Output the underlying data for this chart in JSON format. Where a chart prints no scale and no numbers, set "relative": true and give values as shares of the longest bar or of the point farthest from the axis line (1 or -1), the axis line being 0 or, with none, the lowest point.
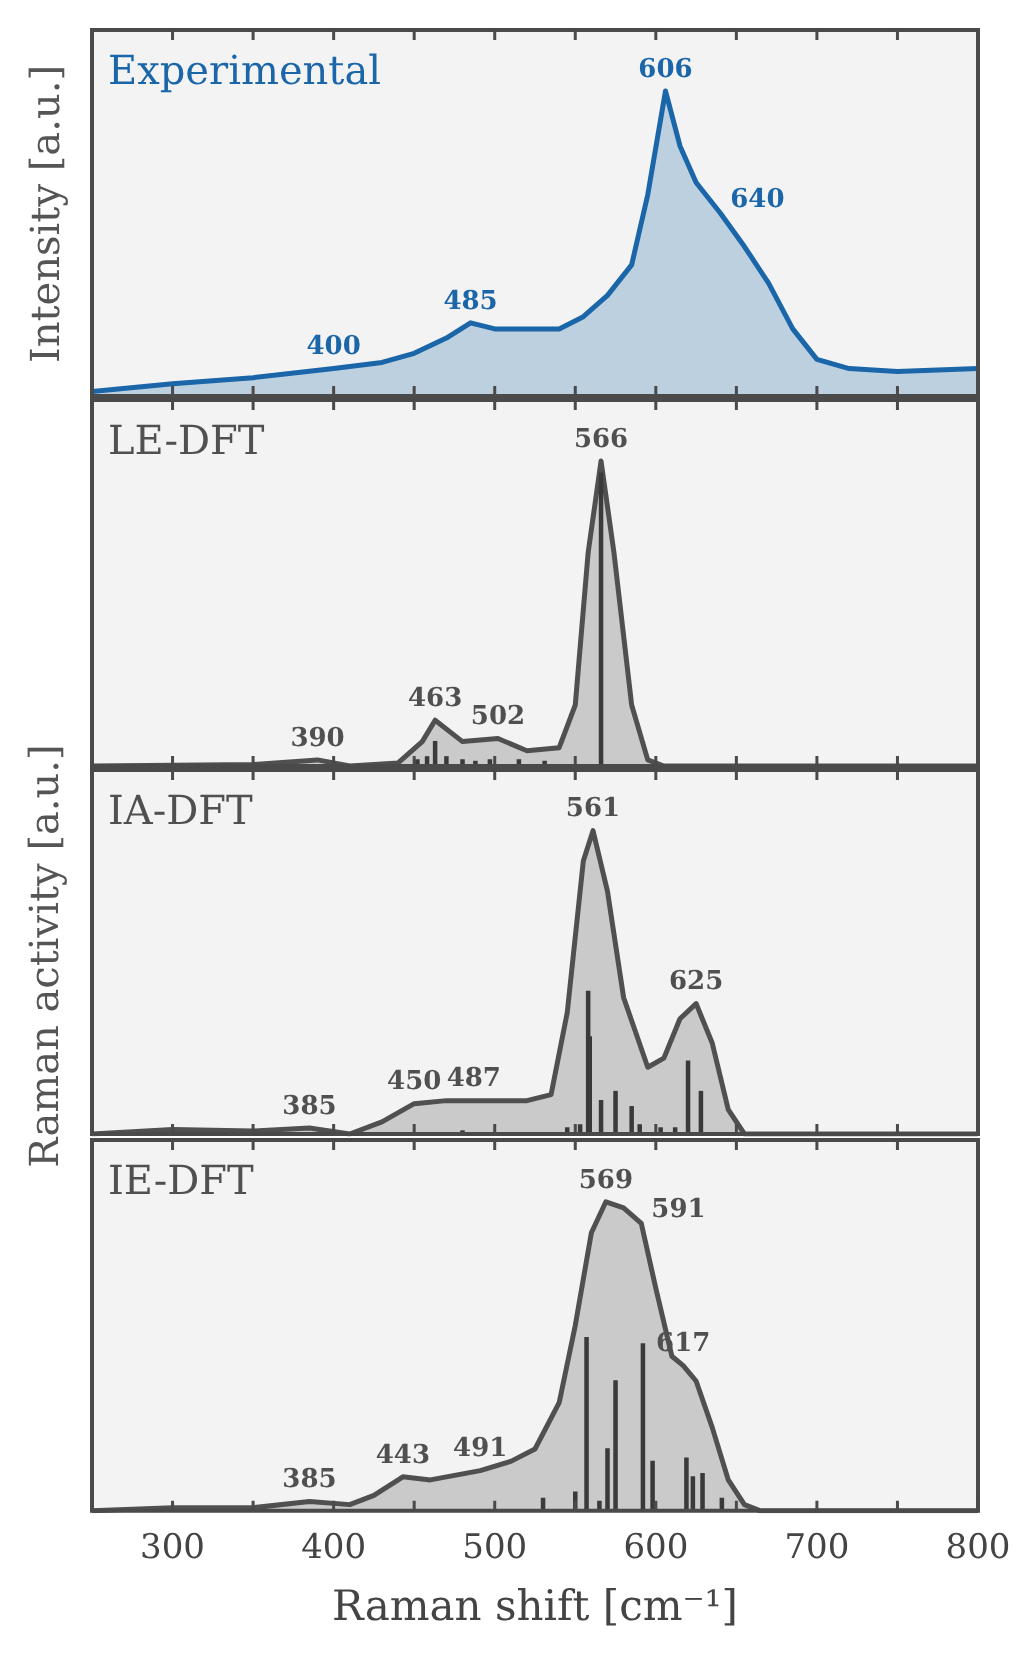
{
  "chart_data": [
    {
      "type": "area",
      "title": "Experimental",
      "ylabel": "Intensity [a.u.]",
      "relative": true,
      "xlim": [
        250,
        800
      ],
      "xticks": [
        300,
        {
          "value": 350,
          "label": null
        },
        400,
        {
          "value": 450,
          "label": null
        },
        500,
        {
          "value": 550,
          "label": null
        },
        600,
        {
          "value": 650,
          "label": null
        },
        700,
        {
          "value": 750,
          "label": null
        },
        800
      ],
      "tick_labels": false,
      "grid": false,
      "legend": false,
      "x": [
        250,
        300,
        350,
        400,
        430,
        450,
        470,
        485,
        500,
        520,
        540,
        555,
        570,
        585,
        595,
        606,
        615,
        625,
        640,
        655,
        670,
        685,
        700,
        720,
        750,
        800
      ],
      "series": [
        {
          "color": "#1a66a8",
          "values": [
            0.015,
            0.04,
            0.06,
            0.09,
            0.11,
            0.14,
            0.19,
            0.24,
            0.22,
            0.22,
            0.22,
            0.26,
            0.33,
            0.43,
            0.66,
            1,
            0.82,
            0.7,
            0.6,
            0.49,
            0.37,
            0.22,
            0.12,
            0.09,
            0.08,
            0.09
          ]
        }
      ],
      "annotations": [
        {
          "text": "400",
          "x": 400,
          "y": 0.09
        },
        {
          "text": "485",
          "x": 485,
          "y": 0.24
        },
        {
          "text": "606",
          "x": 606,
          "y": 1
        },
        {
          "text": "640",
          "x": 640,
          "y": 0.6
        }
      ]
    },
    {
      "type": "area",
      "title": "LE-DFT",
      "relative": true,
      "xlim": [
        250,
        800
      ],
      "xticks": [
        300,
        {
          "value": 350,
          "label": null
        },
        400,
        {
          "value": 450,
          "label": null
        },
        500,
        {
          "value": 550,
          "label": null
        },
        600,
        {
          "value": 650,
          "label": null
        },
        700,
        {
          "value": 750,
          "label": null
        },
        800
      ],
      "tick_labels": false,
      "grid": false,
      "legend": false,
      "x": [
        250,
        350,
        390,
        410,
        440,
        455,
        463,
        480,
        502,
        520,
        540,
        550,
        558,
        566,
        574,
        585,
        595,
        605,
        800
      ],
      "series": [
        {
          "color": "#505050",
          "values": [
            0,
            0.005,
            0.02,
            0,
            0.01,
            0.08,
            0.15,
            0.08,
            0.09,
            0.05,
            0.06,
            0.2,
            0.7,
            1,
            0.7,
            0.2,
            0.02,
            0,
            0
          ]
        },
        {
          "type": "bar",
          "color": "#3a3a3a",
          "x": [
            452,
            458,
            463,
            470,
            480,
            488,
            497,
            515,
            531,
            566
          ],
          "values": [
            0.02,
            0.03,
            0.08,
            0.03,
            0.02,
            0.015,
            0.02,
            0.02,
            0.015,
            0.96
          ]
        }
      ],
      "annotations": [
        {
          "text": "390",
          "x": 390,
          "y": 0.02
        },
        {
          "text": "463",
          "x": 463,
          "y": 0.15
        },
        {
          "text": "502",
          "x": 502,
          "y": 0.09
        },
        {
          "text": "566",
          "x": 566,
          "y": 1
        }
      ]
    },
    {
      "type": "area",
      "title": "IA-DFT",
      "ylabel": "Raman activity [a.u.]",
      "relative": true,
      "xlim": [
        250,
        800
      ],
      "xticks": [
        300,
        {
          "value": 350,
          "label": null
        },
        400,
        {
          "value": 450,
          "label": null
        },
        500,
        {
          "value": 550,
          "label": null
        },
        600,
        {
          "value": 650,
          "label": null
        },
        700,
        {
          "value": 750,
          "label": null
        },
        800
      ],
      "tick_labels": false,
      "grid": false,
      "legend": false,
      "x": [
        250,
        300,
        350,
        385,
        410,
        430,
        450,
        470,
        487,
        520,
        535,
        545,
        555,
        561,
        570,
        580,
        595,
        605,
        615,
        625,
        635,
        645,
        655,
        800
      ],
      "series": [
        {
          "color": "#505050",
          "values": [
            0,
            0.015,
            0.01,
            0.02,
            0,
            0.04,
            0.1,
            0.11,
            0.11,
            0.11,
            0.13,
            0.4,
            0.9,
            1,
            0.8,
            0.45,
            0.22,
            0.25,
            0.38,
            0.43,
            0.3,
            0.08,
            0,
            0
          ]
        },
        {
          "type": "bar",
          "color": "#3a3a3a",
          "x": [
            480,
            545,
            553,
            558,
            559,
            566,
            575,
            585,
            590,
            603,
            612,
            620,
            628
          ],
          "values": [
            0.01,
            0.02,
            0.03,
            0.47,
            0.32,
            0.11,
            0.14,
            0.09,
            0.03,
            0.02,
            0.02,
            0.24,
            0.14
          ]
        }
      ],
      "annotations": [
        {
          "text": "385",
          "x": 385,
          "y": 0.02
        },
        {
          "text": "450",
          "x": 450,
          "y": 0.1
        },
        {
          "text": "487",
          "x": 487,
          "y": 0.11
        },
        {
          "text": "561",
          "x": 561,
          "y": 1
        },
        {
          "text": "625",
          "x": 625,
          "y": 0.43
        }
      ]
    },
    {
      "type": "area",
      "title": "IE-DFT",
      "xlabel": "Raman shift [cm⁻¹]",
      "relative": true,
      "xlim": [
        250,
        800
      ],
      "xticks": [
        300,
        {
          "value": 350,
          "label": null
        },
        400,
        {
          "value": 450,
          "label": null
        },
        500,
        {
          "value": 550,
          "label": null
        },
        600,
        {
          "value": 650,
          "label": null
        },
        700,
        {
          "value": 750,
          "label": null
        },
        800
      ],
      "tick_labels": "x",
      "grid": false,
      "legend": false,
      "x": [
        250,
        300,
        350,
        385,
        410,
        425,
        443,
        460,
        491,
        510,
        525,
        540,
        550,
        560,
        569,
        580,
        591,
        600,
        610,
        617,
        625,
        635,
        645,
        655,
        665,
        800
      ],
      "series": [
        {
          "color": "#505050",
          "values": [
            0,
            0.01,
            0.01,
            0.03,
            0.02,
            0.05,
            0.11,
            0.1,
            0.13,
            0.16,
            0.2,
            0.35,
            0.6,
            0.9,
            1,
            0.98,
            0.93,
            0.72,
            0.5,
            0.47,
            0.42,
            0.27,
            0.1,
            0.02,
            0,
            0
          ]
        },
        {
          "type": "bar",
          "color": "#3a3a3a",
          "x": [
            530,
            550,
            557,
            565,
            570,
            575,
            592,
            598,
            619,
            623,
            629,
            641
          ],
          "values": [
            0.04,
            0.06,
            0.56,
            0.03,
            0.2,
            0.42,
            0.54,
            0.16,
            0.17,
            0.11,
            0.12,
            0.04
          ]
        }
      ],
      "annotations": [
        {
          "text": "385",
          "x": 385,
          "y": 0.03
        },
        {
          "text": "443",
          "x": 443,
          "y": 0.11
        },
        {
          "text": "491",
          "x": 491,
          "y": 0.13
        },
        {
          "text": "569",
          "x": 569,
          "y": 1
        },
        {
          "text": "591",
          "x": 591,
          "y": 0.93
        },
        {
          "text": "617",
          "x": 617,
          "y": 0.47
        }
      ]
    }
  ]
}
